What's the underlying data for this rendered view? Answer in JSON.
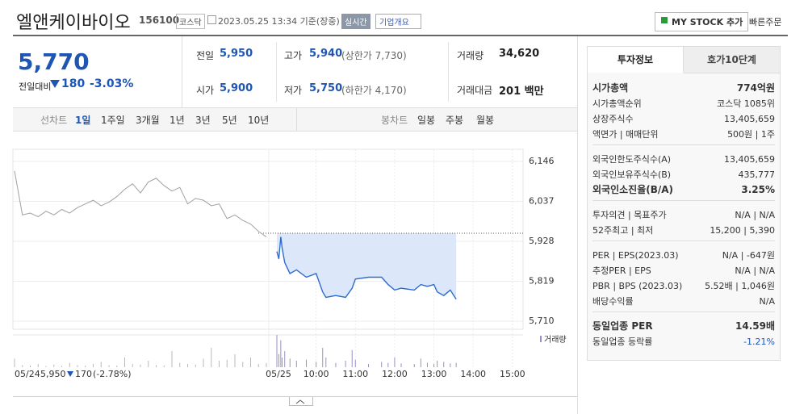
{
  "header": {
    "name": "엘앤케이바이오",
    "code": "156100",
    "market": "코스닥",
    "datetime": "2023.05.25 13:34 기준(장중)",
    "realtime": "실시간",
    "company_info": "기업개요",
    "my_stock": "MY STOCK 추가",
    "quick_order": "빠른주문"
  },
  "price": {
    "current": "5,770",
    "change_label": "전일대비",
    "change": "180",
    "rate": "-3.03%"
  },
  "summary": [
    [
      {
        "label": "전일",
        "value": "5,950"
      },
      {
        "label": "고가",
        "value": "5,940",
        "note": "(상한가 7,730)"
      },
      {
        "label": "거래량",
        "value": "34,620"
      }
    ],
    [
      {
        "label": "시가",
        "value": "5,900"
      },
      {
        "label": "저가",
        "value": "5,750",
        "note": "(하한가 4,170)"
      },
      {
        "label": "거래대금",
        "value": "201 백만"
      }
    ]
  ],
  "chart_tabs": {
    "line_label": "선차트",
    "line_periods": [
      "1일",
      "1주일",
      "3개월",
      "1년",
      "3년",
      "5년",
      "10년"
    ],
    "candle_label": "봉차트",
    "candle_periods": [
      "일봉",
      "주봉",
      "월봉"
    ]
  },
  "chart_data": {
    "type": "line",
    "ylim": [
      5688,
      6179
    ],
    "yticks": [
      {
        "value": 6146,
        "label": "6,146"
      },
      {
        "value": 6037,
        "label": "6,037"
      },
      {
        "value": 5928,
        "label": "5,928"
      },
      {
        "value": 5819,
        "label": "5,819"
      },
      {
        "value": 5710,
        "label": "5,710"
      }
    ],
    "xlim": [
      "09:00",
      "15:15"
    ],
    "xticks": [
      "10:00",
      "11:00",
      "12:00",
      "13:00",
      "14:00",
      "15:00"
    ],
    "grid": true,
    "reference_line": 5950,
    "prev_color": "#a0a0a0",
    "line_color": "#2c6bd2",
    "fill_color": "#dce8fa",
    "volume_color": "#b9b9b9",
    "volume_today_color": "#9a8fc8",
    "prev_day": {
      "date": "05/24",
      "values": [
        6120,
        6000,
        6005,
        5995,
        6010,
        6000,
        6015,
        6005,
        6020,
        6030,
        6040,
        6025,
        6035,
        6050,
        6070,
        6085,
        6060,
        6090,
        6100,
        6080,
        6065,
        6075,
        6030,
        6045,
        6040,
        6025,
        6030,
        5990,
        6000,
        5985,
        5975,
        5955,
        5940
      ],
      "volume": [
        800,
        200,
        150,
        300,
        100,
        250,
        120,
        400,
        200,
        150,
        300,
        500,
        200,
        150,
        900,
        300,
        250,
        600,
        200,
        180,
        1500,
        400,
        300,
        250,
        800,
        1800,
        600,
        700,
        1200,
        500,
        900,
        300,
        400
      ]
    },
    "today": {
      "date": "05/25",
      "x": [
        "09:00",
        "09:03",
        "09:06",
        "09:08",
        "09:12",
        "09:20",
        "09:30",
        "09:45",
        "10:00",
        "10:10",
        "10:15",
        "10:30",
        "10:45",
        "10:55",
        "11:00",
        "11:20",
        "11:40",
        "11:50",
        "12:00",
        "12:10",
        "12:30",
        "12:40",
        "12:50",
        "13:00",
        "13:05",
        "13:15",
        "13:25",
        "13:34"
      ],
      "values": [
        5900,
        5880,
        5940,
        5910,
        5870,
        5840,
        5850,
        5830,
        5840,
        5790,
        5775,
        5780,
        5775,
        5800,
        5825,
        5830,
        5830,
        5810,
        5795,
        5800,
        5795,
        5810,
        5805,
        5810,
        5790,
        5780,
        5795,
        5770
      ],
      "volume": [
        3000,
        1200,
        2500,
        900,
        1500,
        800,
        600,
        700,
        500,
        1800,
        900,
        400,
        600,
        1600,
        700,
        300,
        500,
        400,
        900,
        350,
        300,
        800,
        400,
        300,
        600,
        500,
        350,
        400
      ]
    },
    "volume_label": "거래량",
    "footer": {
      "close": "5,950",
      "change": "170",
      "rate": "(-2.78%)"
    }
  },
  "investment": {
    "tabs": [
      "투자정보",
      "호가10단계"
    ],
    "groups": [
      [
        {
          "label": "시가총액",
          "value": "774억원"
        },
        {
          "label": "시가총액순위",
          "value": "코스닥 1085위"
        },
        {
          "label": "상장주식수",
          "value": "13,405,659"
        },
        {
          "label": "액면가 | 매매단위",
          "value": "500원 | 1주"
        }
      ],
      [
        {
          "label": "외국인한도주식수(A)",
          "value": "13,405,659"
        },
        {
          "label": "외국인보유주식수(B)",
          "value": "435,777"
        },
        {
          "label": "외국인소진율(B/A)",
          "value": "3.25%"
        }
      ],
      [
        {
          "label": "투자의견 | 목표주가",
          "value": "N/A | N/A"
        },
        {
          "label": "52주최고 | 최저",
          "value": "15,200 | 5,390"
        }
      ],
      [
        {
          "label": "PER | EPS(2023.03)",
          "value": "N/A | -647원"
        },
        {
          "label": "추정PER | EPS",
          "value": "N/A | N/A"
        },
        {
          "label": "PBR | BPS (2023.03)",
          "value": "5.52배 | 1,046원"
        },
        {
          "label": "배당수익률",
          "value": "N/A"
        }
      ],
      [
        {
          "label": "동일업종 PER",
          "value": "14.59배"
        },
        {
          "label": "동일업종 등락률",
          "value": "-1.21%"
        }
      ]
    ]
  }
}
